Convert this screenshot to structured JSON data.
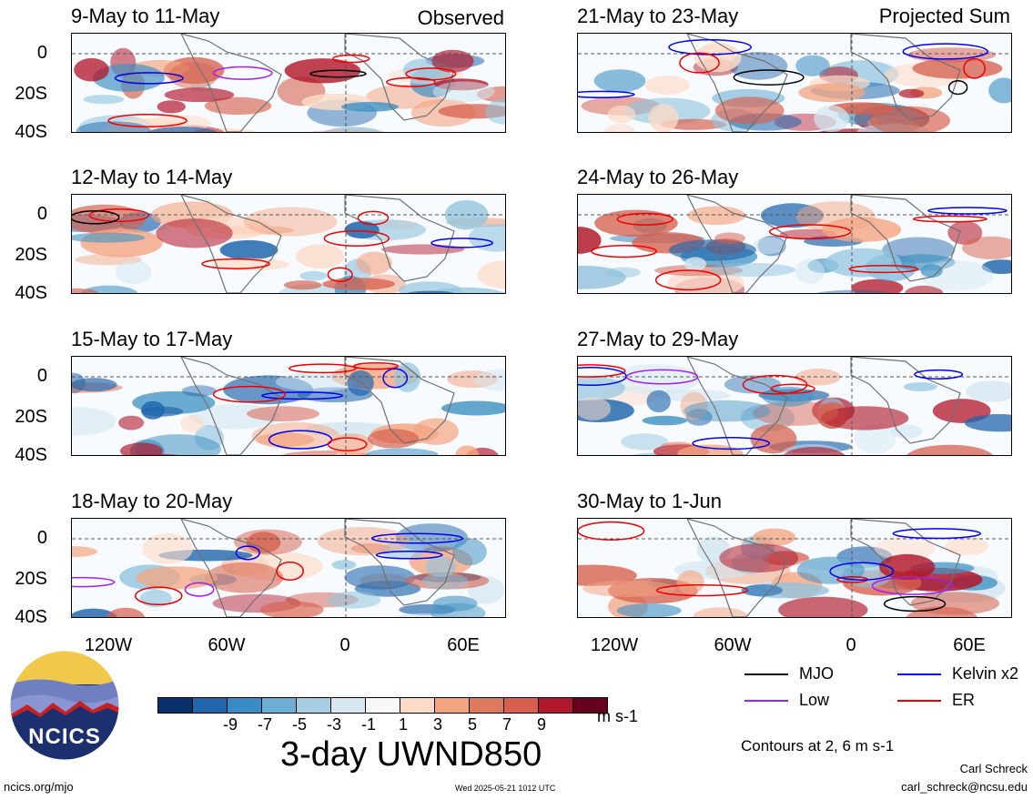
{
  "panels": [
    {
      "title": "9-May to 11-May",
      "tag": "Observed"
    },
    {
      "title": "12-May to 14-May",
      "tag": ""
    },
    {
      "title": "15-May to 17-May",
      "tag": ""
    },
    {
      "title": "18-May to 20-May",
      "tag": ""
    },
    {
      "title": "21-May to 23-May",
      "tag": "Projected Sum"
    },
    {
      "title": "24-May to 26-May",
      "tag": ""
    },
    {
      "title": "27-May to 29-May",
      "tag": ""
    },
    {
      "title": "30-May to 1-Jun",
      "tag": ""
    }
  ],
  "lat_ticks": [
    "0",
    "20S",
    "40S"
  ],
  "lon_ticks": [
    "120W",
    "60W",
    "0",
    "60E"
  ],
  "colorbar": {
    "labels": [
      "-9",
      "-7",
      "-5",
      "-3",
      "-1",
      "1",
      "3",
      "5",
      "7",
      "9"
    ],
    "colors": [
      "#08306b",
      "#2166ac",
      "#3a8cc6",
      "#6baed6",
      "#a6cee3",
      "#d6e7f2",
      "#f7f7f7",
      "#fddbc7",
      "#f4a582",
      "#e07a5f",
      "#d6604d",
      "#b2182b",
      "#67001f"
    ],
    "units": "m s-1"
  },
  "main_title": "3-day UWND850",
  "legend": {
    "items": [
      {
        "label": "MJO",
        "color": "#000000"
      },
      {
        "label": "Kelvin x2",
        "color": "#0000ee"
      },
      {
        "label": "Low",
        "color": "#a020f0"
      },
      {
        "label": "ER",
        "color": "#ee0000"
      }
    ],
    "note": "Contours at 2, 6 m s-1"
  },
  "logo_text": "NCICS",
  "footer": {
    "left": "ncics.org/mjo",
    "center": "Wed 2025-05-21 1012 UTC",
    "author": "Carl Schreck",
    "email": "carl_schreck@ncsu.edu"
  }
}
